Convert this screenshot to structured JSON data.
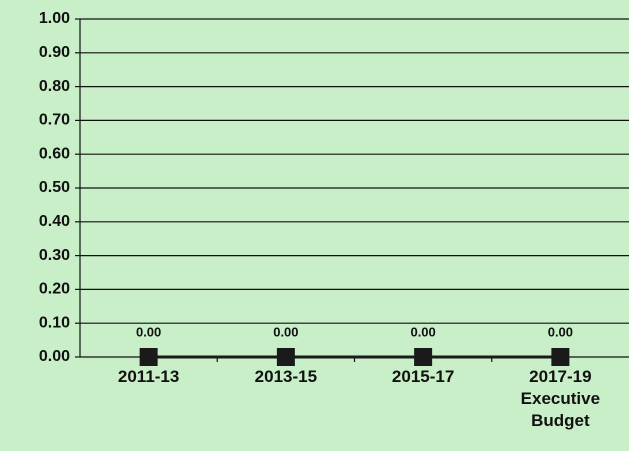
{
  "chart_data": {
    "type": "line",
    "categories": [
      "2011-13",
      "2013-15",
      "2015-17",
      "2017-19 Executive Budget"
    ],
    "series": [
      {
        "color": "#1a1a1a",
        "values": [
          0,
          0,
          0,
          0
        ],
        "value_labels": [
          "0.00",
          "0.00",
          "0.00",
          "0.00"
        ]
      }
    ],
    "ylim": [
      0,
      1
    ],
    "yticks": [
      {
        "value": 0,
        "label": "0.00"
      },
      {
        "value": 0.1,
        "label": "0.10"
      },
      {
        "value": 0.2,
        "label": "0.20"
      },
      {
        "value": 0.3,
        "label": "0.30"
      },
      {
        "value": 0.4,
        "label": "0.40"
      },
      {
        "value": 0.5,
        "label": "0.50"
      },
      {
        "value": 0.6,
        "label": "0.60"
      },
      {
        "value": 0.7,
        "label": "0.70"
      },
      {
        "value": 0.8,
        "label": "0.80"
      },
      {
        "value": 0.9,
        "label": "0.90"
      },
      {
        "value": 1,
        "label": "1.00"
      }
    ],
    "grid": true
  }
}
